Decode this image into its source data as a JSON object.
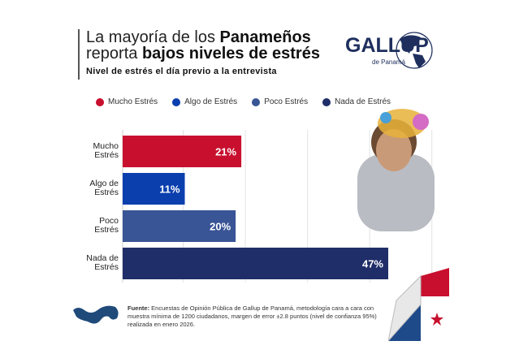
{
  "header": {
    "title_line1_regular": "La mayoría de los ",
    "title_line1_bold": "Panameños",
    "title_line2_regular": "reporta ",
    "title_line2_bold": "bajos niveles de estrés",
    "subtitle": "Nivel de estrés el día previo a la entrevista"
  },
  "logo": {
    "name": "GALLUP",
    "sub": "de Panamá"
  },
  "chart_data": {
    "type": "bar",
    "orientation": "horizontal",
    "title": "Nivel de estrés el día previo a la entrevista",
    "categories": [
      "Mucho Estrés",
      "Algo de Estrés",
      "Poco Estrés",
      "Nada de Estrés"
    ],
    "category_labels": [
      [
        "Mucho",
        "Estrés"
      ],
      [
        "Algo de",
        "Estrés"
      ],
      [
        "Poco",
        "Estrés"
      ],
      [
        "Nada de",
        "Estrés"
      ]
    ],
    "values": [
      21,
      11,
      20,
      47
    ],
    "value_labels": [
      "21%",
      "11%",
      "20%",
      "47%"
    ],
    "colors": [
      "#c8102e",
      "#0b3fae",
      "#3a5596",
      "#1f2e68"
    ],
    "xlim": [
      0,
      60
    ],
    "grid": true,
    "legend_position": "top",
    "unit": "%"
  },
  "legend": [
    {
      "label": "Mucho Estrés",
      "color": "#c8102e"
    },
    {
      "label": "Algo de Estrés",
      "color": "#0b3fae"
    },
    {
      "label": "Poco Estrés",
      "color": "#3a5596"
    },
    {
      "label": "Nada de Estrés",
      "color": "#1f2e68"
    }
  ],
  "source": {
    "label": "Fuente:",
    "text": " Encuestas de Opinión Pública de Gallup de Panamá, metodología cara a cara con muestra mínima de 1200 ciudadanos, margen de error ±2.8 puntos (nivel de confianza 95%) realizada en enero 2026."
  }
}
